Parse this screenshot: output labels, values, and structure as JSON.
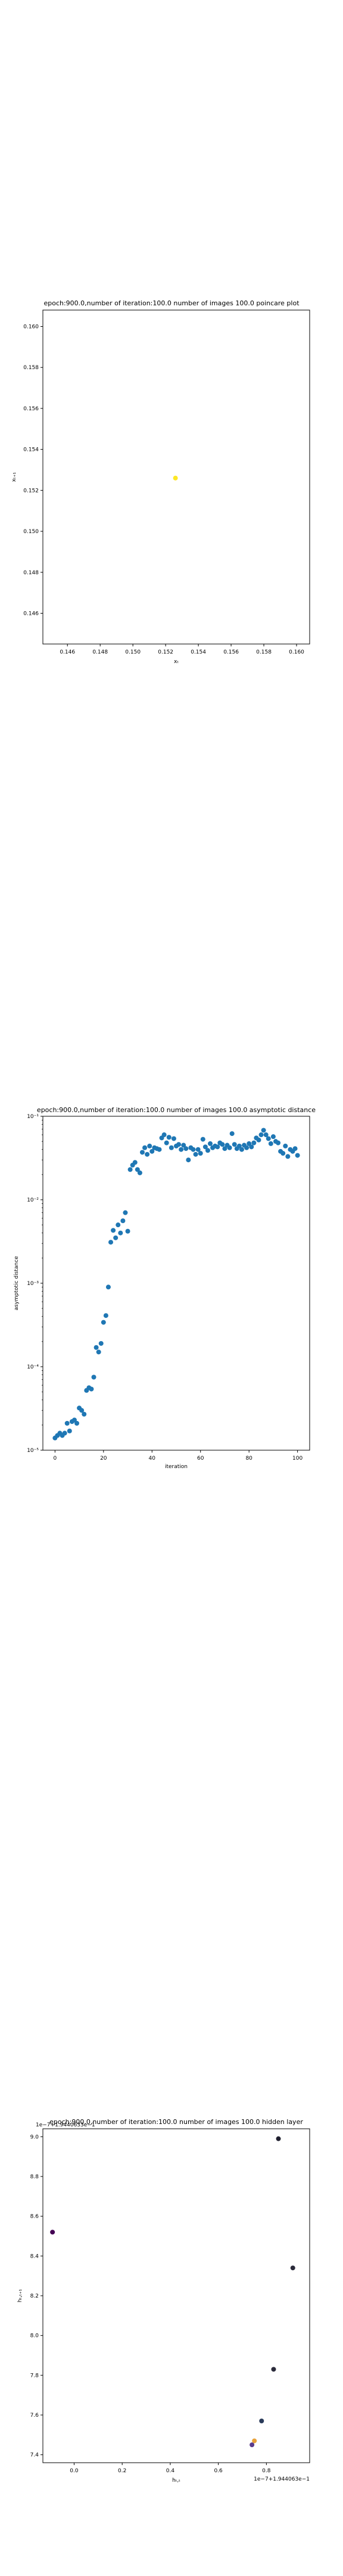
{
  "chart_data": [
    {
      "type": "scatter",
      "title": "epoch:900.0,number of iteration:100.0  number of images 100.0 poincare plot",
      "xlabel": "xₜ",
      "ylabel": "xₜ₊₁",
      "xlim": [
        0.1445,
        0.1608
      ],
      "ylim": [
        0.1445,
        0.1608
      ],
      "xticks": [
        "0.146",
        "0.148",
        "0.150",
        "0.152",
        "0.154",
        "0.156",
        "0.158",
        "0.160"
      ],
      "yticks": [
        "0.146",
        "0.148",
        "0.150",
        "0.152",
        "0.154",
        "0.156",
        "0.158",
        "0.160"
      ],
      "grid": false,
      "points": [
        {
          "x": 0.1526,
          "y": 0.1526,
          "color": "#fde725"
        }
      ]
    },
    {
      "type": "scatter",
      "title": "epoch:900.0,number of iteration:100.0  number of images 100.0 asymptotic distance",
      "xlabel": "iteration",
      "ylabel": "asymptotic distance",
      "yscale": "log",
      "xlim": [
        -5,
        105
      ],
      "ylim": [
        1e-05,
        0.1
      ],
      "xticks": [
        "0",
        "20",
        "40",
        "60",
        "80",
        "100"
      ],
      "yticks": [
        "10⁻⁵",
        "10⁻⁴",
        "10⁻³",
        "10⁻²",
        "10⁻¹"
      ],
      "grid": false,
      "color": "#1f77b4",
      "x": [
        0,
        1,
        2,
        3,
        4,
        5,
        6,
        7,
        8,
        9,
        10,
        11,
        12,
        13,
        14,
        15,
        16,
        17,
        18,
        19,
        20,
        21,
        22,
        23,
        24,
        25,
        26,
        27,
        28,
        29,
        30,
        31,
        32,
        33,
        34,
        35,
        36,
        37,
        38,
        39,
        40,
        41,
        42,
        43,
        44,
        45,
        46,
        47,
        48,
        49,
        50,
        51,
        52,
        53,
        54,
        55,
        56,
        57,
        58,
        59,
        60,
        61,
        62,
        63,
        64,
        65,
        66,
        67,
        68,
        69,
        70,
        71,
        72,
        73,
        74,
        75,
        76,
        77,
        78,
        79,
        80,
        81,
        82,
        83,
        84,
        85,
        86,
        87,
        88,
        89,
        90,
        91,
        92,
        93,
        94,
        95,
        96,
        97,
        98,
        99,
        100
      ],
      "y": [
        1.4e-05,
        1.5e-05,
        1.6e-05,
        1.5e-05,
        1.6e-05,
        2.1e-05,
        1.7e-05,
        2.2e-05,
        2.3e-05,
        2.1e-05,
        3.2e-05,
        3e-05,
        2.7e-05,
        5.2e-05,
        5.6e-05,
        5.4e-05,
        7.5e-05,
        0.00017,
        0.00015,
        0.00019,
        0.00034,
        0.00041,
        0.0009,
        0.0031,
        0.0043,
        0.0035,
        0.005,
        0.004,
        0.0056,
        0.007,
        0.0042,
        0.023,
        0.026,
        0.028,
        0.023,
        0.021,
        0.037,
        0.042,
        0.035,
        0.044,
        0.038,
        0.042,
        0.041,
        0.04,
        0.055,
        0.06,
        0.048,
        0.056,
        0.042,
        0.054,
        0.044,
        0.046,
        0.04,
        0.045,
        0.041,
        0.03,
        0.042,
        0.04,
        0.035,
        0.04,
        0.036,
        0.053,
        0.043,
        0.039,
        0.047,
        0.042,
        0.044,
        0.043,
        0.048,
        0.046,
        0.041,
        0.045,
        0.042,
        0.062,
        0.046,
        0.041,
        0.044,
        0.04,
        0.045,
        0.042,
        0.047,
        0.043,
        0.048,
        0.055,
        0.052,
        0.06,
        0.068,
        0.06,
        0.054,
        0.047,
        0.057,
        0.05,
        0.048,
        0.038,
        0.036,
        0.044,
        0.033,
        0.04,
        0.038,
        0.041,
        0.034
      ]
    },
    {
      "type": "scatter",
      "title": "epoch:900.0,number of iteration:100.0  number of images 100.0 hidden layer",
      "xlabel": "hₜ,ₜ",
      "ylabel": "hₜ,ₜ₊₁",
      "xlim": [
        -0.13,
        0.98
      ],
      "ylim": [
        7.36,
        9.04
      ],
      "xticks": [
        "0.0",
        "0.2",
        "0.4",
        "0.6",
        "0.8"
      ],
      "yticks": [
        "7.4",
        "7.6",
        "7.8",
        "8.0",
        "8.2",
        "8.4",
        "8.6",
        "8.8",
        "9.0"
      ],
      "x_offset_text": "1e−7+1.944063e−1",
      "y_offset_text": "1e−7+1.9440633e−1",
      "grid": false,
      "points": [
        {
          "x": -0.09,
          "y": 8.52,
          "color": "#440154"
        },
        {
          "x": 0.85,
          "y": 8.99,
          "color": "#1f1f2e"
        },
        {
          "x": 0.91,
          "y": 8.34,
          "color": "#2a2a3a"
        },
        {
          "x": 0.83,
          "y": 7.83,
          "color": "#2b2b3b"
        },
        {
          "x": 0.78,
          "y": 7.57,
          "color": "#2a3b5a"
        },
        {
          "x": 0.75,
          "y": 7.47,
          "color": "#e8a23a"
        },
        {
          "x": 0.74,
          "y": 7.45,
          "color": "#5a3c8c"
        }
      ]
    }
  ]
}
